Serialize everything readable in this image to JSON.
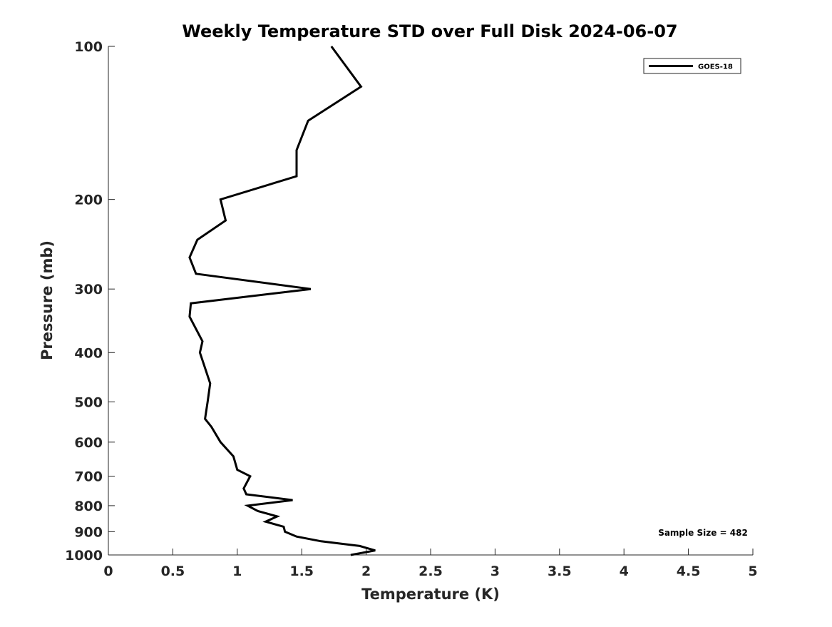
{
  "chart_data": {
    "type": "line",
    "title": "Weekly Temperature STD over Full Disk 2024-06-07",
    "xlabel": "Temperature (K)",
    "ylabel": "Pressure (mb)",
    "xlim": [
      0,
      5
    ],
    "ylim": [
      100,
      1000
    ],
    "yscale": "log",
    "yreverse": true,
    "xticks": [
      0,
      0.5,
      1,
      1.5,
      2,
      2.5,
      3,
      3.5,
      4,
      4.5,
      5
    ],
    "xtick_labels": [
      "0",
      "0.5",
      "1",
      "1.5",
      "2",
      "2.5",
      "3",
      "3.5",
      "4",
      "4.5",
      "5"
    ],
    "yticks": [
      100,
      200,
      300,
      400,
      500,
      600,
      700,
      800,
      900,
      1000
    ],
    "ytick_labels": [
      "100",
      "200",
      "300",
      "400",
      "500",
      "600",
      "700",
      "800",
      "900",
      "1000"
    ],
    "grid": false,
    "legend_position": "top-right",
    "annotation": "Sample Size = 482",
    "series": [
      {
        "name": "GOES-18",
        "color": "#000000",
        "temperature": [
          1.73,
          1.96,
          1.55,
          1.46,
          1.46,
          0.87,
          0.91,
          0.69,
          0.63,
          0.68,
          1.57,
          0.64,
          0.63,
          0.73,
          0.71,
          0.79,
          0.77,
          0.75,
          0.8,
          0.87,
          0.97,
          1.0,
          1.1,
          1.05,
          1.07,
          1.43,
          1.08,
          1.16,
          1.31,
          1.22,
          1.36,
          1.37,
          1.46,
          1.65,
          1.95,
          2.07,
          1.88
        ],
        "pressure": [
          100,
          120,
          140,
          160,
          180,
          200,
          220,
          240,
          260,
          280,
          300,
          320,
          340,
          380,
          400,
          460,
          500,
          540,
          560,
          600,
          640,
          680,
          700,
          740,
          760,
          780,
          800,
          820,
          840,
          860,
          880,
          900,
          920,
          940,
          960,
          980,
          1000
        ]
      }
    ]
  }
}
